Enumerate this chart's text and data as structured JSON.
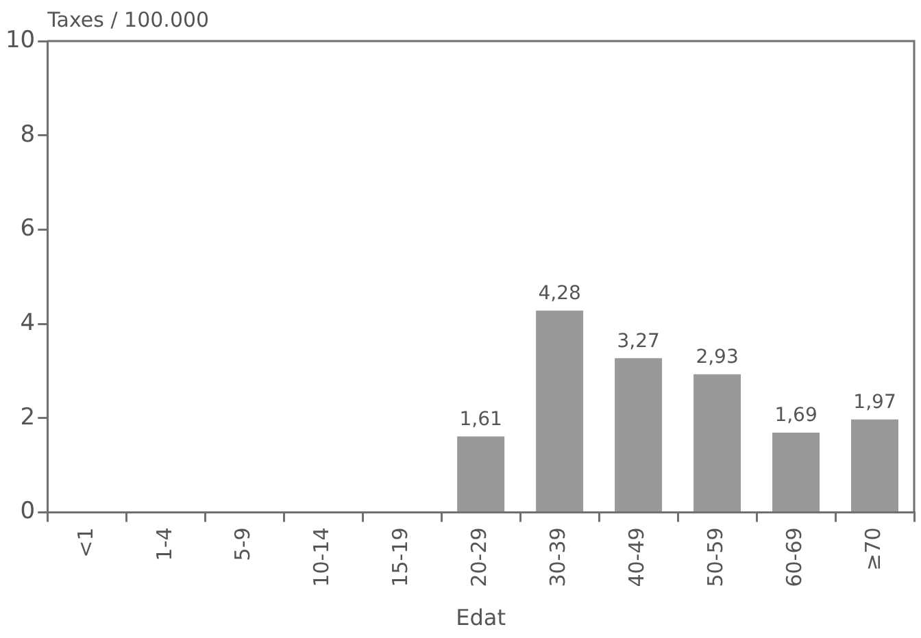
{
  "chart_data": {
    "type": "bar",
    "categories": [
      "<1",
      "1-4",
      "5-9",
      "10-14",
      "15-19",
      "20-29",
      "30-39",
      "40-49",
      "50-59",
      "60-69",
      "≥70"
    ],
    "values": [
      null,
      null,
      null,
      null,
      null,
      1.61,
      4.28,
      3.27,
      2.93,
      1.69,
      1.97
    ],
    "value_labels": [
      null,
      null,
      null,
      null,
      null,
      "1,61",
      "4,28",
      "3,27",
      "2,93",
      "1,69",
      "1,97"
    ],
    "color": "#999999",
    "ylim": [
      0,
      10
    ],
    "yticks": [
      0,
      2,
      4,
      6,
      8,
      10
    ],
    "ylabel": "Taxes / 100.000",
    "xlabel": "Edat",
    "grid": false
  }
}
